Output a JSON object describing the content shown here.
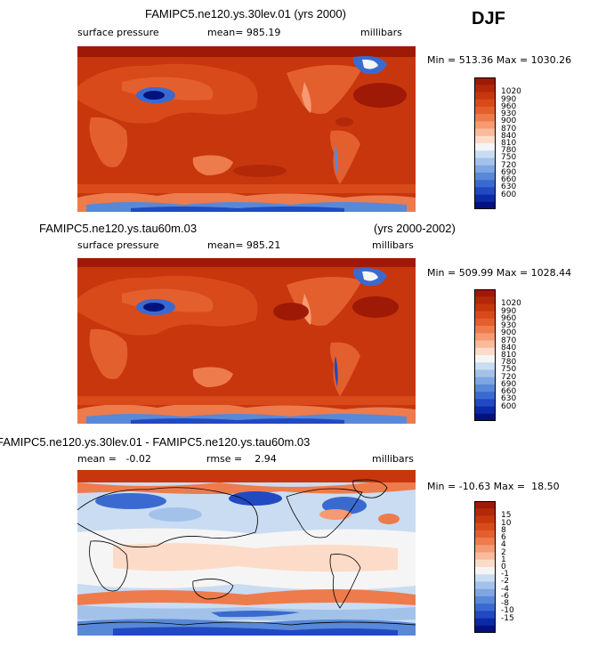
{
  "season": "DJF",
  "panels": [
    {
      "title": "FAMIPC5.ne120.ys.30lev.01 (yrs 2000)",
      "title_right": "",
      "variable": "surface pressure",
      "stat": "mean= 985.19",
      "units": "millibars",
      "minmax": "Min = 513.36 Max = 1030.26"
    },
    {
      "title": "FAMIPC5.ne120.ys.tau60m.03",
      "title_right": "(yrs 2000-2002)",
      "variable": "surface pressure",
      "stat": "mean= 985.21",
      "units": "millibars",
      "minmax": "Min = 509.99 Max = 1028.44"
    },
    {
      "title": "FAMIPC5.ne120.ys.30lev.01 - FAMIPC5.ne120.ys.tau60m.03",
      "title_right": "",
      "variable": "mean =   -0.02",
      "stat": "rmse =    2.94",
      "units": "millibars",
      "minmax": "Min = -10.63 Max =  18.50"
    }
  ],
  "colorbars": {
    "absolute": {
      "labels": [
        "1020",
        "990",
        "960",
        "930",
        "900",
        "870",
        "840",
        "810",
        "780",
        "750",
        "720",
        "690",
        "660",
        "630",
        "600"
      ],
      "colors": [
        "#9e1a06",
        "#b32808",
        "#c7360d",
        "#d84a1a",
        "#e45f2e",
        "#ee7b4c",
        "#f59a72",
        "#f9bb9c",
        "#fcdcc8",
        "#f5f5f5",
        "#c9dcf2",
        "#a3c2ea",
        "#7ea6e2",
        "#5888d8",
        "#3a6ad0",
        "#2049c2",
        "#0c2aa8",
        "#04127e"
      ]
    },
    "difference": {
      "labels": [
        "15",
        "10",
        "8",
        "6",
        "4",
        "2",
        "1",
        "0",
        "-1",
        "-2",
        "-4",
        "-6",
        "-8",
        "-10",
        "-15"
      ],
      "colors": [
        "#9e1a06",
        "#b32808",
        "#c7360d",
        "#d84a1a",
        "#e45f2e",
        "#ee7b4c",
        "#f59a72",
        "#f9bb9c",
        "#fcdcc8",
        "#f5f5f5",
        "#c9dcf2",
        "#a3c2ea",
        "#7ea6e2",
        "#5888d8",
        "#3a6ad0",
        "#2049c2",
        "#0c2aa8",
        "#04127e"
      ]
    }
  },
  "chart_data": [
    {
      "type": "heatmap",
      "title": "FAMIPC5.ne120.ys.30lev.01 (yrs 2000)",
      "variable": "surface pressure",
      "units": "millibars",
      "mean": 985.19,
      "min": 513.36,
      "max": 1030.26,
      "levels": [
        600,
        630,
        660,
        690,
        720,
        750,
        780,
        810,
        840,
        870,
        900,
        930,
        960,
        990,
        1020
      ]
    },
    {
      "type": "heatmap",
      "title": "FAMIPC5.ne120.ys.tau60m.03",
      "period": "(yrs 2000-2002)",
      "variable": "surface pressure",
      "units": "millibars",
      "mean": 985.21,
      "min": 509.99,
      "max": 1028.44,
      "levels": [
        600,
        630,
        660,
        690,
        720,
        750,
        780,
        810,
        840,
        870,
        900,
        930,
        960,
        990,
        1020
      ]
    },
    {
      "type": "heatmap",
      "title": "FAMIPC5.ne120.ys.30lev.01 - FAMIPC5.ne120.ys.tau60m.03",
      "units": "millibars",
      "mean": -0.02,
      "rmse": 2.94,
      "min": -10.63,
      "max": 18.5,
      "levels": [
        -15,
        -10,
        -8,
        -6,
        -4,
        -2,
        -1,
        0,
        1,
        2,
        4,
        6,
        8,
        10,
        15
      ]
    }
  ]
}
